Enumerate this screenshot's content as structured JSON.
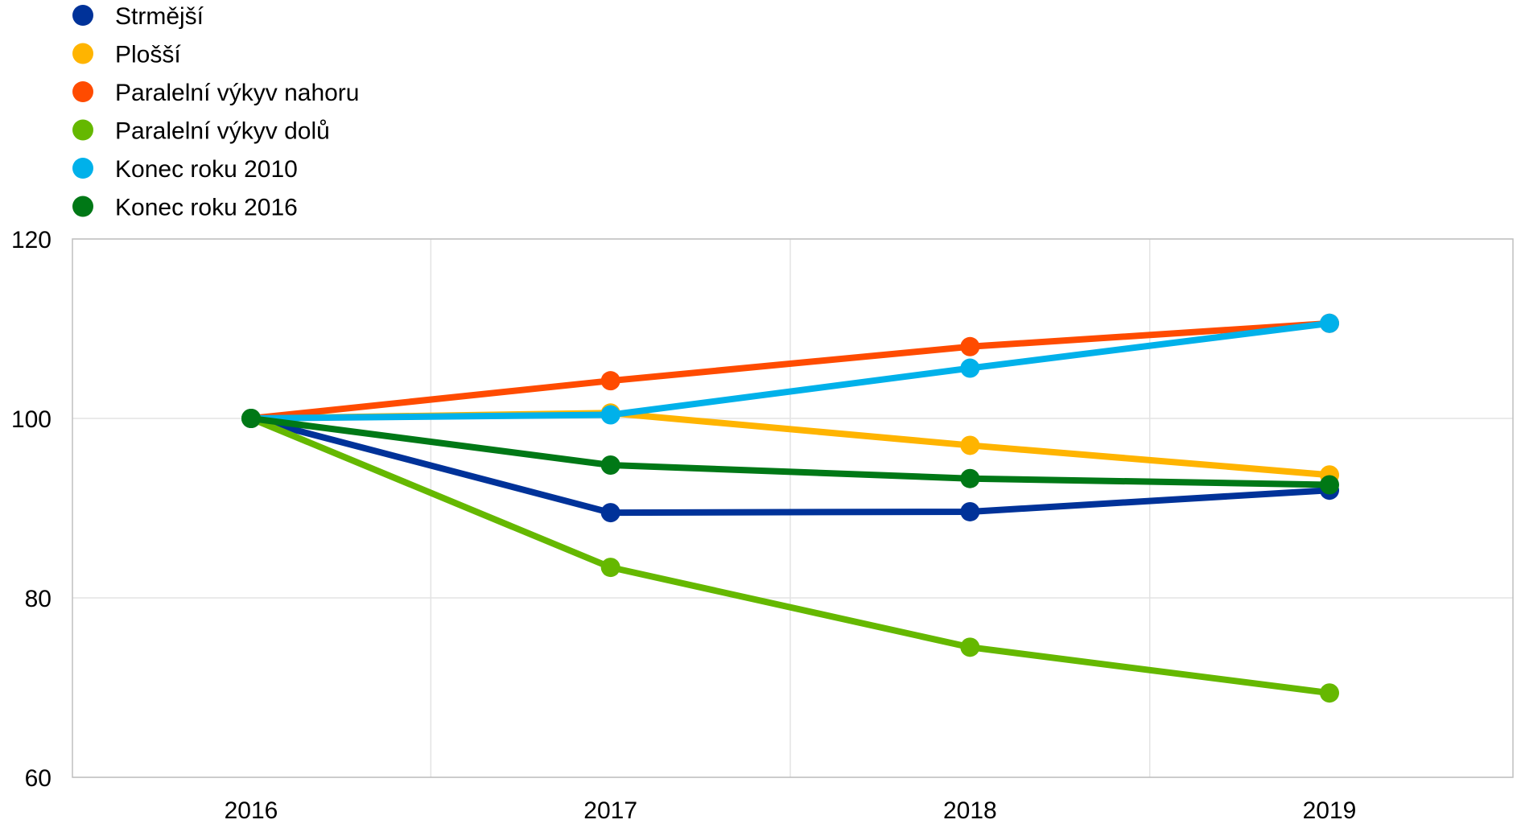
{
  "chart_data": {
    "type": "line",
    "title": "",
    "xlabel": "",
    "ylabel": "",
    "categories": [
      "2016",
      "2017",
      "2018",
      "2019"
    ],
    "ylim": [
      60,
      120
    ],
    "yticks": [
      "60",
      "80",
      "100",
      "120"
    ],
    "grid": true,
    "legend_position": "top-left",
    "series": [
      {
        "name": "Strmější",
        "color": "#003299",
        "values": [
          100,
          89.5,
          89.6,
          92
        ]
      },
      {
        "name": "Plošší",
        "color": "#FFB400",
        "values": [
          100,
          100.6,
          97,
          93.7
        ]
      },
      {
        "name": "Paralelní výkyv nahoru",
        "color": "#FF4B00",
        "values": [
          100,
          104.2,
          108,
          110.6
        ]
      },
      {
        "name": "Paralelní výkyv dolů",
        "color": "#65B800",
        "values": [
          100,
          83.4,
          74.5,
          69.4
        ]
      },
      {
        "name": "Konec roku 2010",
        "color": "#00B1EA",
        "values": [
          100,
          100.4,
          105.6,
          110.6
        ]
      },
      {
        "name": "Konec roku 2016",
        "color": "#007816",
        "values": [
          100,
          94.8,
          93.3,
          92.6
        ]
      }
    ]
  }
}
